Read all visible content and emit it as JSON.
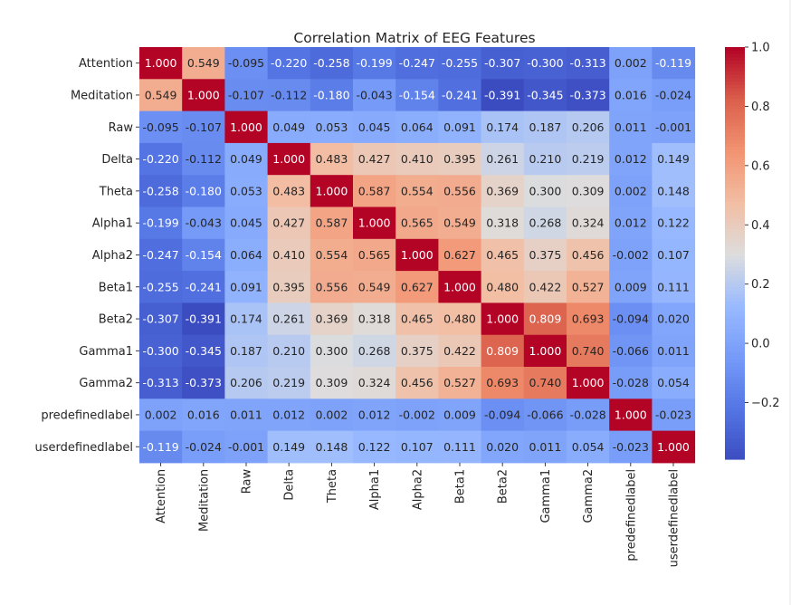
{
  "chart_data": {
    "type": "heatmap",
    "title": "Correlation Matrix of EEG Features",
    "labels": [
      "Attention",
      "Meditation",
      "Raw",
      "Delta",
      "Theta",
      "Alpha1",
      "Alpha2",
      "Beta1",
      "Beta2",
      "Gamma1",
      "Gamma2",
      "predefinedlabel",
      "userdefinedlabel"
    ],
    "matrix": [
      [
        1.0,
        0.549,
        -0.095,
        -0.22,
        -0.258,
        -0.199,
        -0.247,
        -0.255,
        -0.307,
        -0.3,
        -0.313,
        0.002,
        -0.119
      ],
      [
        0.549,
        1.0,
        -0.107,
        -0.112,
        -0.18,
        -0.043,
        -0.154,
        -0.241,
        -0.391,
        -0.345,
        -0.373,
        0.016,
        -0.024
      ],
      [
        -0.095,
        -0.107,
        1.0,
        0.049,
        0.053,
        0.045,
        0.064,
        0.091,
        0.174,
        0.187,
        0.206,
        0.011,
        -0.001
      ],
      [
        -0.22,
        -0.112,
        0.049,
        1.0,
        0.483,
        0.427,
        0.41,
        0.395,
        0.261,
        0.21,
        0.219,
        0.012,
        0.149
      ],
      [
        -0.258,
        -0.18,
        0.053,
        0.483,
        1.0,
        0.587,
        0.554,
        0.556,
        0.369,
        0.3,
        0.309,
        0.002,
        0.148
      ],
      [
        -0.199,
        -0.043,
        0.045,
        0.427,
        0.587,
        1.0,
        0.565,
        0.549,
        0.318,
        0.268,
        0.324,
        0.012,
        0.122
      ],
      [
        -0.247,
        -0.154,
        0.064,
        0.41,
        0.554,
        0.565,
        1.0,
        0.627,
        0.465,
        0.375,
        0.456,
        -0.002,
        0.107
      ],
      [
        -0.255,
        -0.241,
        0.091,
        0.395,
        0.556,
        0.549,
        0.627,
        1.0,
        0.48,
        0.422,
        0.527,
        0.009,
        0.111
      ],
      [
        -0.307,
        -0.391,
        0.174,
        0.261,
        0.369,
        0.318,
        0.465,
        0.48,
        1.0,
        0.809,
        0.693,
        -0.094,
        0.02
      ],
      [
        -0.3,
        -0.345,
        0.187,
        0.21,
        0.3,
        0.268,
        0.375,
        0.422,
        0.809,
        1.0,
        0.74,
        -0.066,
        0.011
      ],
      [
        -0.313,
        -0.373,
        0.206,
        0.219,
        0.309,
        0.324,
        0.456,
        0.527,
        0.693,
        0.74,
        1.0,
        -0.028,
        0.054
      ],
      [
        0.002,
        0.016,
        0.011,
        0.012,
        0.002,
        0.012,
        -0.002,
        0.009,
        -0.094,
        -0.066,
        -0.028,
        1.0,
        -0.023
      ],
      [
        -0.119,
        -0.024,
        -0.001,
        0.149,
        0.148,
        0.122,
        0.107,
        0.111,
        0.02,
        0.011,
        0.054,
        -0.023,
        1.0
      ]
    ],
    "colormap": "coolwarm",
    "vmin": -0.391,
    "vmax": 1.0,
    "colorbar_ticks": [
      -0.2,
      0.0,
      0.2,
      0.4,
      0.6,
      0.8,
      1.0
    ],
    "colorbar_tick_labels": [
      "−0.2",
      "0.0",
      "0.2",
      "0.4",
      "0.6",
      "0.8",
      "1.0"
    ],
    "annotation_format": "3 decimals"
  }
}
